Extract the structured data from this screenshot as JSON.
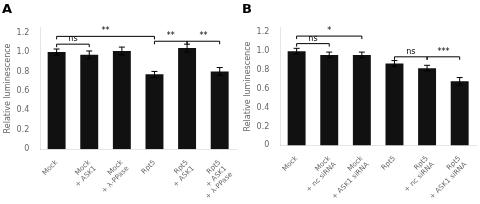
{
  "chart_data": [
    {
      "type": "bar",
      "title": "A",
      "categories": [
        "Mock",
        "Mock\n+ ASK1",
        "Mock\n+ λ-PPase",
        "Rpt5",
        "Rpt5\n+ ASK1",
        "Rpt5\n+ ASK1\n+ λ-PPase"
      ],
      "values": [
        1.0,
        0.97,
        1.01,
        0.77,
        1.04,
        0.8
      ],
      "errors": [
        0.03,
        0.04,
        0.04,
        0.03,
        0.04,
        0.04
      ],
      "color": "#111111",
      "ylabel": "Relative luminescence",
      "ylim": [
        0,
        1.25
      ],
      "yticks": [
        0,
        0.2,
        0.4,
        0.6,
        0.8,
        {
          "value": 1.0,
          "label": "1.0"
        },
        1.2
      ],
      "grid": false,
      "annotations": [
        {
          "from": "Mock",
          "to": "Mock\n+ ASK1",
          "y": 1.08,
          "label": "ns"
        },
        {
          "from": "Mock",
          "to": "Rpt5",
          "y": 1.16,
          "label": "**"
        },
        {
          "from": "Rpt5",
          "to": "Rpt5\n+ ASK1",
          "y": 1.11,
          "label": "**"
        },
        {
          "from": "Rpt5\n+ ASK1",
          "to": "Rpt5\n+ ASK1\n+ λ-PPase",
          "y": 1.11,
          "label": "**"
        }
      ]
    },
    {
      "type": "bar",
      "title": "B",
      "categories": [
        "Mock",
        "Mock\n+ nc siRNA",
        "Mock\n+ ASK1 siRNA",
        "Rpt5",
        "Rpt5\n+ nc siRNA",
        "Rpt5\n+ ASK1 siRNA"
      ],
      "values": [
        1.0,
        0.96,
        0.96,
        0.87,
        0.82,
        0.68
      ],
      "errors": [
        0.03,
        0.03,
        0.03,
        0.03,
        0.03,
        0.04
      ],
      "color": "#111111",
      "ylabel": "Relative luminescence",
      "ylim": [
        0,
        1.25
      ],
      "yticks": [
        0,
        0.2,
        0.4,
        0.6,
        0.8,
        {
          "value": 1.0,
          "label": "1.0"
        },
        1.2
      ],
      "grid": false,
      "annotations": [
        {
          "from": "Mock",
          "to": "Mock\n+ nc siRNA",
          "y": 1.08,
          "label": "ns"
        },
        {
          "from": "Mock",
          "to": "Mock\n+ ASK1 siRNA",
          "y": 1.16,
          "label": "*"
        },
        {
          "from": "Rpt5",
          "to": "Rpt5\n+ nc siRNA",
          "y": 0.94,
          "label": "ns"
        },
        {
          "from": "Rpt5\n+ nc siRNA",
          "to": "Rpt5\n+ ASK1 siRNA",
          "y": 0.94,
          "label": "***"
        }
      ]
    }
  ]
}
